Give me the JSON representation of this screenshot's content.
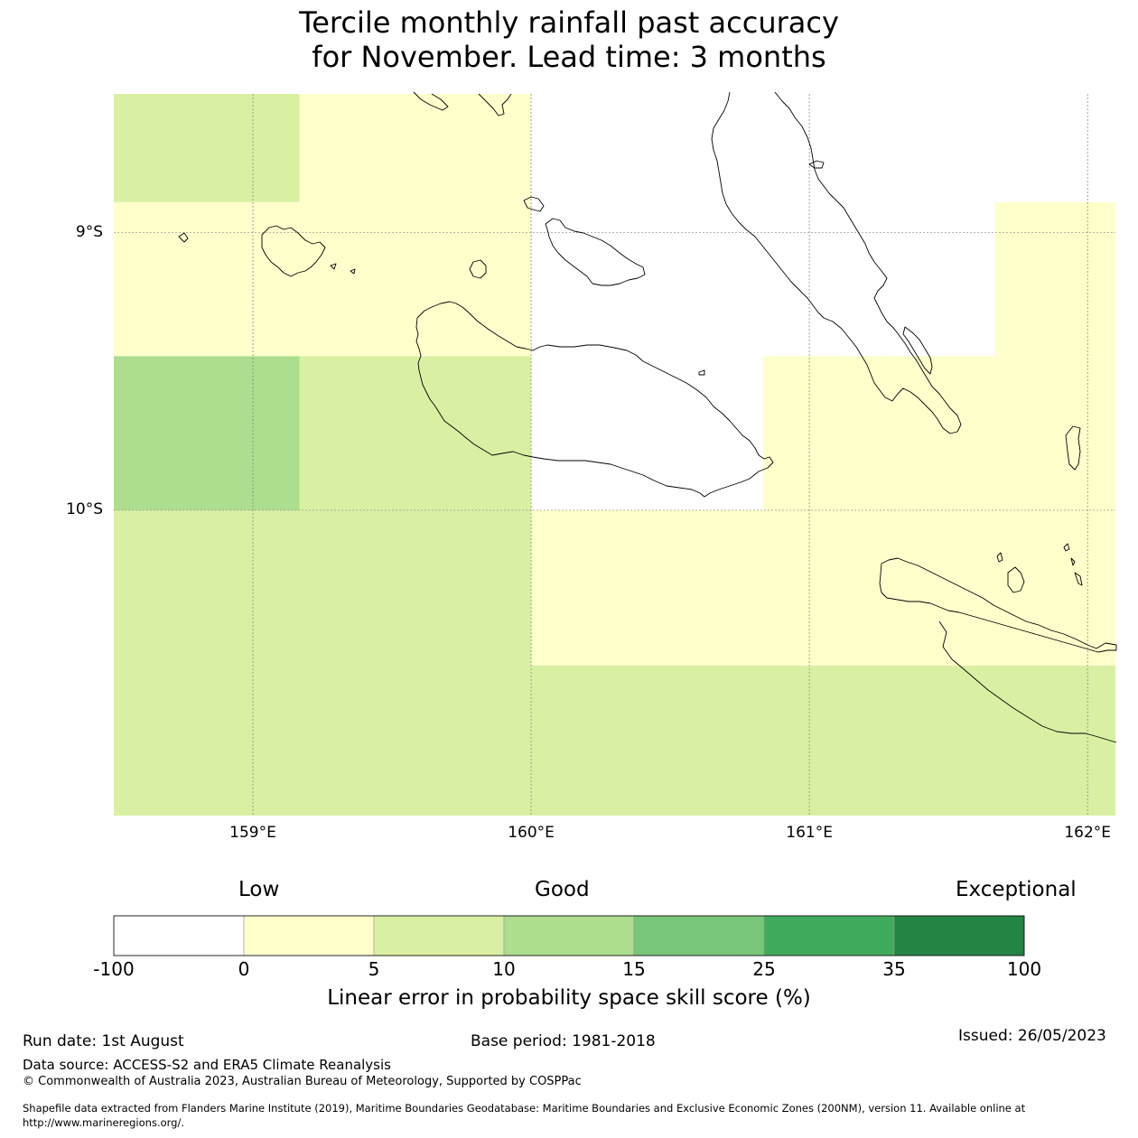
{
  "title": {
    "line1": "Tercile monthly rainfall past accuracy",
    "line2": "for November. Lead time: 3 months"
  },
  "map": {
    "lon_range": [
      158.5,
      162.1
    ],
    "lat_range": [
      -11.1,
      -8.5
    ],
    "lat_labels": [
      "9°S",
      "10°S"
    ],
    "lon_labels": [
      "159°E",
      "160°E",
      "161°E",
      "162°E"
    ],
    "gridlines": true,
    "coastline_color": "#000000",
    "cells": [
      {
        "lon": [
          158.5,
          159.167
        ],
        "lat": [
          -8.89,
          -8.5
        ],
        "cat": 2
      },
      {
        "lon": [
          159.167,
          160.0
        ],
        "lat": [
          -8.89,
          -8.5
        ],
        "cat": 1
      },
      {
        "lon": [
          158.5,
          160.0
        ],
        "lat": [
          -9.445,
          -8.89
        ],
        "cat": 1
      },
      {
        "lon": [
          158.5,
          159.167
        ],
        "lat": [
          -10.0,
          -9.445
        ],
        "cat": 3
      },
      {
        "lon": [
          159.167,
          160.0
        ],
        "lat": [
          -10.0,
          -9.445
        ],
        "cat": 2
      },
      {
        "lon": [
          158.5,
          160.0
        ],
        "lat": [
          -11.1,
          -10.0
        ],
        "cat": 2
      },
      {
        "lon": [
          161.667,
          162.1
        ],
        "lat": [
          -9.445,
          -8.89
        ],
        "cat": 1
      },
      {
        "lon": [
          160.833,
          162.1
        ],
        "lat": [
          -10.0,
          -9.445
        ],
        "cat": 1
      },
      {
        "lon": [
          160.0,
          162.1
        ],
        "lat": [
          -10.56,
          -10.0
        ],
        "cat": 1
      },
      {
        "lon": [
          160.0,
          162.1
        ],
        "lat": [
          -11.1,
          -10.56
        ],
        "cat": 2
      }
    ]
  },
  "colorbar": {
    "categories": [
      "Low",
      "Good",
      "Exceptional"
    ],
    "ticks": [
      "-100",
      "0",
      "5",
      "10",
      "15",
      "25",
      "35",
      "100"
    ],
    "colors": [
      "#ffffff",
      "#ffffcc",
      "#d9f0a3",
      "#addd8e",
      "#78c679",
      "#41ab5d",
      "#238443"
    ],
    "label": "Linear error in probability space skill score (%)"
  },
  "footer": {
    "run_date": "Run date: 1st August",
    "base_period": "Base period: 1981-2018",
    "issued": "Issued: 26/05/2023",
    "data_source": "Data source: ACCESS-S2 and ERA5 Climate Reanalysis",
    "copyright": "© Commonwealth of Australia 2023, Australian Bureau of Meteorology, Supported by COSPPac",
    "shapefile_line1": "Shapefile data extracted from Flanders Marine Institute (2019), Maritime Boundaries Geodatabase: Maritime Boundaries and Exclusive Economic Zones (200NM), version 11. Available online at",
    "shapefile_line2": "http://www.marineregions.org/."
  }
}
